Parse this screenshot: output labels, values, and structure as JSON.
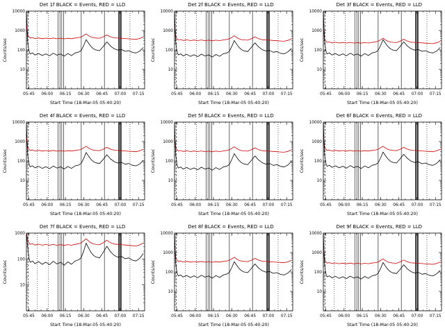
{
  "figure": {
    "background": "#ffffff"
  },
  "chart_data": {
    "type": "line",
    "layout": {
      "rows": 3,
      "cols": 3,
      "grid": "off",
      "legend": "in-title"
    },
    "xlabel": "Start Time (18-Mar-05 05:40:20)",
    "ylabel": "Counts/sec",
    "xlim": [
      43,
      140
    ],
    "x_minor_step": 5,
    "x_ticks": [
      {
        "v": 45,
        "label": "05:45"
      },
      {
        "v": 60,
        "label": "06:00"
      },
      {
        "v": 75,
        "label": "06:15"
      },
      {
        "v": 90,
        "label": "06:30"
      },
      {
        "v": 105,
        "label": "06:45"
      },
      {
        "v": 120,
        "label": "07:00"
      },
      {
        "v": 135,
        "label": "07:15"
      }
    ],
    "colors": {
      "events": "#000000",
      "lld": "#cc0000"
    },
    "series_legend": {
      "black": "Events",
      "red": "LLD"
    },
    "x": [
      43,
      44,
      45,
      46,
      48,
      50,
      53,
      56,
      59,
      62,
      65,
      68,
      71,
      74,
      77,
      80,
      83,
      86,
      88,
      90,
      92,
      94,
      96,
      98,
      100,
      103,
      106,
      109,
      112,
      115,
      118,
      121,
      124,
      127,
      130,
      133,
      136,
      139
    ],
    "base_series": {
      "events": [
        9000,
        260,
        95,
        62,
        70,
        55,
        66,
        52,
        63,
        50,
        68,
        54,
        62,
        48,
        65,
        52,
        70,
        78,
        95,
        170,
        340,
        220,
        150,
        115,
        100,
        92,
        150,
        260,
        160,
        115,
        98,
        105,
        85,
        92,
        75,
        70,
        88,
        135
      ],
      "lld": [
        1800,
        650,
        470,
        410,
        430,
        385,
        415,
        380,
        405,
        378,
        410,
        375,
        400,
        372,
        398,
        380,
        410,
        435,
        470,
        560,
        670,
        545,
        465,
        425,
        412,
        400,
        470,
        590,
        475,
        420,
        408,
        398,
        385,
        372,
        362,
        352,
        390,
        465
      ]
    },
    "vlines": [
      {
        "x": 44.5,
        "style": "dashed"
      },
      {
        "x": 52,
        "style": "dotted"
      },
      {
        "x": 61,
        "style": "dotted"
      },
      {
        "x": 69,
        "style": "solid"
      },
      {
        "x": 70.5,
        "style": "solid"
      },
      {
        "x": 72,
        "style": "solid"
      },
      {
        "x": 73.5,
        "style": "solid"
      },
      {
        "x": 88,
        "style": "solid"
      },
      {
        "x": 107,
        "style": "solid"
      },
      {
        "x": 119,
        "style": "thick"
      },
      {
        "x": 120.5,
        "style": "thick"
      },
      {
        "x": 128,
        "style": "dotted"
      }
    ],
    "panels": [
      {
        "title": "Det 1f BLACK = Events, RED = LLD",
        "ylim": [
          1,
          10000
        ],
        "yticks": [
          10,
          100,
          1000,
          10000
        ],
        "scale": {
          "events": 1.0,
          "lld": 1.0
        }
      },
      {
        "title": "Det 2f BLACK = Events, RED = LLD",
        "ylim": [
          1,
          10000
        ],
        "yticks": [
          10,
          100,
          1000,
          10000
        ],
        "scale": {
          "events": 0.9,
          "lld": 0.8
        }
      },
      {
        "title": "Det 3f BLACK = Events, RED = LLD",
        "ylim": [
          1,
          10000
        ],
        "yticks": [
          10,
          100,
          1000,
          10000
        ],
        "scale": {
          "events": 1.0,
          "lld": 0.6
        }
      },
      {
        "title": "Det 4f BLACK = Events, RED = LLD",
        "ylim": [
          1,
          10000
        ],
        "yticks": [
          10,
          100,
          1000,
          10000
        ],
        "scale": {
          "events": 0.8,
          "lld": 0.85
        }
      },
      {
        "title": "Det 5f BLACK = Events, RED = LLD",
        "ylim": [
          1,
          10000
        ],
        "yticks": [
          10,
          100,
          1000,
          10000
        ],
        "scale": {
          "events": 0.7,
          "lld": 0.8
        }
      },
      {
        "title": "Det 6f BLACK = Events, RED = LLD",
        "ylim": [
          1,
          10000
        ],
        "yticks": [
          10,
          100,
          1000,
          10000
        ],
        "scale": {
          "events": 0.85,
          "lld": 0.85
        }
      },
      {
        "title": "Det 7f BLACK = Events, RED = LLD",
        "ylim": [
          1,
          1000
        ],
        "yticks": [
          10,
          100,
          1000
        ],
        "scale": {
          "events": 1.2,
          "lld": 0.9
        }
      },
      {
        "title": "Det 8f BLACK = Events, RED = LLD",
        "ylim": [
          1,
          10000
        ],
        "yticks": [
          10,
          100,
          1000,
          10000
        ],
        "scale": {
          "events": 1.0,
          "lld": 0.85
        }
      },
      {
        "title": "Det 9f BLACK = Events, RED = LLD",
        "ylim": [
          1,
          10000
        ],
        "yticks": [
          10,
          100,
          1000,
          10000
        ],
        "scale": {
          "events": 0.9,
          "lld": 0.7
        }
      }
    ]
  }
}
